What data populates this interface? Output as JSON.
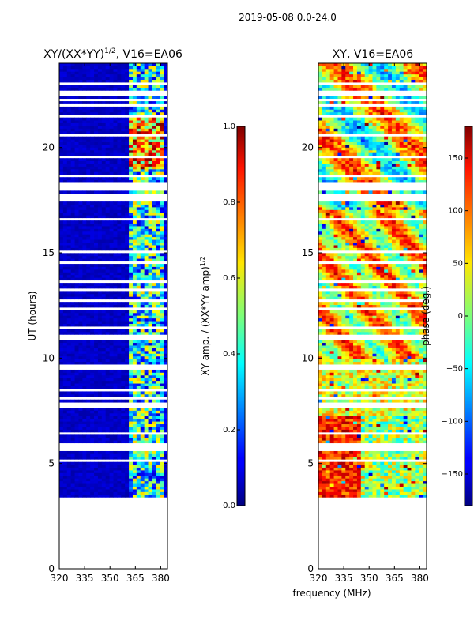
{
  "chart_data": {
    "type": "heatmap",
    "suptitle": "2019-05-08 0.0-24.0",
    "xlabel": "frequency (MHz)",
    "panels": [
      {
        "id": "amp",
        "title_main": "XY/(XX*YY)",
        "title_exp": "1/2",
        "title_suffix": ", V16=EA06",
        "ylabel": "UT (hours)",
        "xlim": [
          320,
          384
        ],
        "ylim": [
          0,
          24
        ],
        "xticks": [
          320,
          335,
          350,
          365,
          380
        ],
        "xtick_labels": [
          "320",
          "335",
          "350",
          "365",
          "380"
        ],
        "yticks": [
          0,
          5,
          10,
          15,
          20
        ],
        "ytick_labels": [
          "0",
          "5",
          "10",
          "15",
          "20"
        ],
        "data_ut_range": [
          3.4,
          24
        ],
        "colorbar": {
          "label_main": "XY amp. / (XX*YY amp)",
          "label_exp": "1/2",
          "range": [
            0,
            1
          ],
          "ticks": [
            0.0,
            0.2,
            0.4,
            0.6,
            0.8,
            1.0
          ],
          "tick_labels": [
            "0.0",
            "0.2",
            "0.4",
            "0.6",
            "0.8",
            "1.0"
          ]
        }
      },
      {
        "id": "phase",
        "title_main": "XY, V16=EA06",
        "xlim": [
          320,
          384
        ],
        "ylim": [
          0,
          24
        ],
        "xticks": [
          320,
          335,
          350,
          365,
          380
        ],
        "xtick_labels": [
          "320",
          "335",
          "350",
          "365",
          "380"
        ],
        "yticks": [
          0,
          5,
          10,
          15,
          20
        ],
        "ytick_labels": [
          "0",
          "5",
          "10",
          "15",
          "20"
        ],
        "data_ut_range": [
          3.4,
          24
        ],
        "colorbar": {
          "label_main": "phase (deg.)",
          "range": [
            -180,
            180
          ],
          "ticks": [
            -150,
            -100,
            -50,
            0,
            50,
            100,
            150
          ],
          "tick_labels": [
            "−150",
            "−100",
            "−50",
            "0",
            "50",
            "100",
            "150"
          ]
        }
      }
    ]
  }
}
